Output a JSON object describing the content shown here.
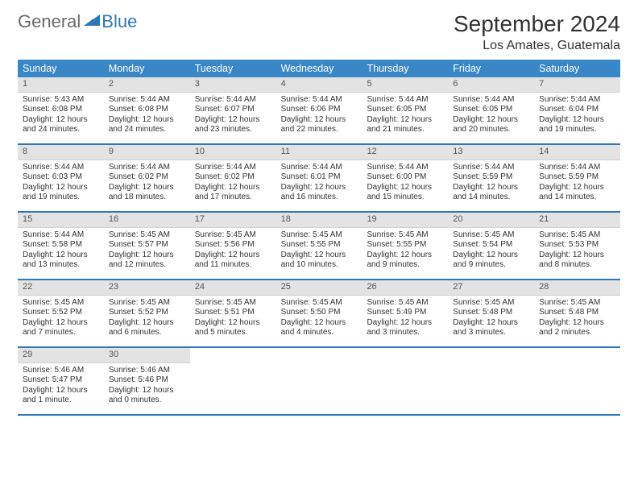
{
  "logo": {
    "part1": "General",
    "part2": "Blue",
    "sail_color": "#2e77b8"
  },
  "title": "September 2024",
  "location": "Los Amates, Guatemala",
  "colors": {
    "header_bg": "#3a87c7",
    "header_text": "#ffffff",
    "row_divider": "#2e77b8",
    "daynum_bg": "#e3e3e3",
    "body_text": "#333333",
    "page_bg": "#ffffff"
  },
  "fonts": {
    "month_title_pt": 28,
    "location_pt": 16,
    "dow_pt": 12.5,
    "daynum_pt": 11,
    "body_pt": 10
  },
  "days_of_week": [
    "Sunday",
    "Monday",
    "Tuesday",
    "Wednesday",
    "Thursday",
    "Friday",
    "Saturday"
  ],
  "days": [
    {
      "n": 1,
      "sunrise": "5:43 AM",
      "sunset": "6:08 PM",
      "dl_h": 12,
      "dl_m": 24
    },
    {
      "n": 2,
      "sunrise": "5:44 AM",
      "sunset": "6:08 PM",
      "dl_h": 12,
      "dl_m": 24
    },
    {
      "n": 3,
      "sunrise": "5:44 AM",
      "sunset": "6:07 PM",
      "dl_h": 12,
      "dl_m": 23
    },
    {
      "n": 4,
      "sunrise": "5:44 AM",
      "sunset": "6:06 PM",
      "dl_h": 12,
      "dl_m": 22
    },
    {
      "n": 5,
      "sunrise": "5:44 AM",
      "sunset": "6:05 PM",
      "dl_h": 12,
      "dl_m": 21
    },
    {
      "n": 6,
      "sunrise": "5:44 AM",
      "sunset": "6:05 PM",
      "dl_h": 12,
      "dl_m": 20
    },
    {
      "n": 7,
      "sunrise": "5:44 AM",
      "sunset": "6:04 PM",
      "dl_h": 12,
      "dl_m": 19
    },
    {
      "n": 8,
      "sunrise": "5:44 AM",
      "sunset": "6:03 PM",
      "dl_h": 12,
      "dl_m": 19
    },
    {
      "n": 9,
      "sunrise": "5:44 AM",
      "sunset": "6:02 PM",
      "dl_h": 12,
      "dl_m": 18
    },
    {
      "n": 10,
      "sunrise": "5:44 AM",
      "sunset": "6:02 PM",
      "dl_h": 12,
      "dl_m": 17
    },
    {
      "n": 11,
      "sunrise": "5:44 AM",
      "sunset": "6:01 PM",
      "dl_h": 12,
      "dl_m": 16
    },
    {
      "n": 12,
      "sunrise": "5:44 AM",
      "sunset": "6:00 PM",
      "dl_h": 12,
      "dl_m": 15
    },
    {
      "n": 13,
      "sunrise": "5:44 AM",
      "sunset": "5:59 PM",
      "dl_h": 12,
      "dl_m": 14
    },
    {
      "n": 14,
      "sunrise": "5:44 AM",
      "sunset": "5:59 PM",
      "dl_h": 12,
      "dl_m": 14
    },
    {
      "n": 15,
      "sunrise": "5:44 AM",
      "sunset": "5:58 PM",
      "dl_h": 12,
      "dl_m": 13
    },
    {
      "n": 16,
      "sunrise": "5:45 AM",
      "sunset": "5:57 PM",
      "dl_h": 12,
      "dl_m": 12
    },
    {
      "n": 17,
      "sunrise": "5:45 AM",
      "sunset": "5:56 PM",
      "dl_h": 12,
      "dl_m": 11
    },
    {
      "n": 18,
      "sunrise": "5:45 AM",
      "sunset": "5:55 PM",
      "dl_h": 12,
      "dl_m": 10
    },
    {
      "n": 19,
      "sunrise": "5:45 AM",
      "sunset": "5:55 PM",
      "dl_h": 12,
      "dl_m": 9
    },
    {
      "n": 20,
      "sunrise": "5:45 AM",
      "sunset": "5:54 PM",
      "dl_h": 12,
      "dl_m": 9
    },
    {
      "n": 21,
      "sunrise": "5:45 AM",
      "sunset": "5:53 PM",
      "dl_h": 12,
      "dl_m": 8
    },
    {
      "n": 22,
      "sunrise": "5:45 AM",
      "sunset": "5:52 PM",
      "dl_h": 12,
      "dl_m": 7
    },
    {
      "n": 23,
      "sunrise": "5:45 AM",
      "sunset": "5:52 PM",
      "dl_h": 12,
      "dl_m": 6
    },
    {
      "n": 24,
      "sunrise": "5:45 AM",
      "sunset": "5:51 PM",
      "dl_h": 12,
      "dl_m": 5
    },
    {
      "n": 25,
      "sunrise": "5:45 AM",
      "sunset": "5:50 PM",
      "dl_h": 12,
      "dl_m": 4
    },
    {
      "n": 26,
      "sunrise": "5:45 AM",
      "sunset": "5:49 PM",
      "dl_h": 12,
      "dl_m": 3
    },
    {
      "n": 27,
      "sunrise": "5:45 AM",
      "sunset": "5:48 PM",
      "dl_h": 12,
      "dl_m": 3
    },
    {
      "n": 28,
      "sunrise": "5:45 AM",
      "sunset": "5:48 PM",
      "dl_h": 12,
      "dl_m": 2
    },
    {
      "n": 29,
      "sunrise": "5:46 AM",
      "sunset": "5:47 PM",
      "dl_h": 12,
      "dl_m": 1
    },
    {
      "n": 30,
      "sunrise": "5:46 AM",
      "sunset": "5:46 PM",
      "dl_h": 12,
      "dl_m": 0
    }
  ],
  "labels": {
    "sunrise": "Sunrise:",
    "sunset": "Sunset:",
    "daylight": "Daylight:",
    "hours": "hours",
    "and": "and",
    "minute": "minute",
    "minutes": "minutes"
  },
  "layout": {
    "start_weekday_index": 0,
    "weeks": 5,
    "cols": 7
  }
}
